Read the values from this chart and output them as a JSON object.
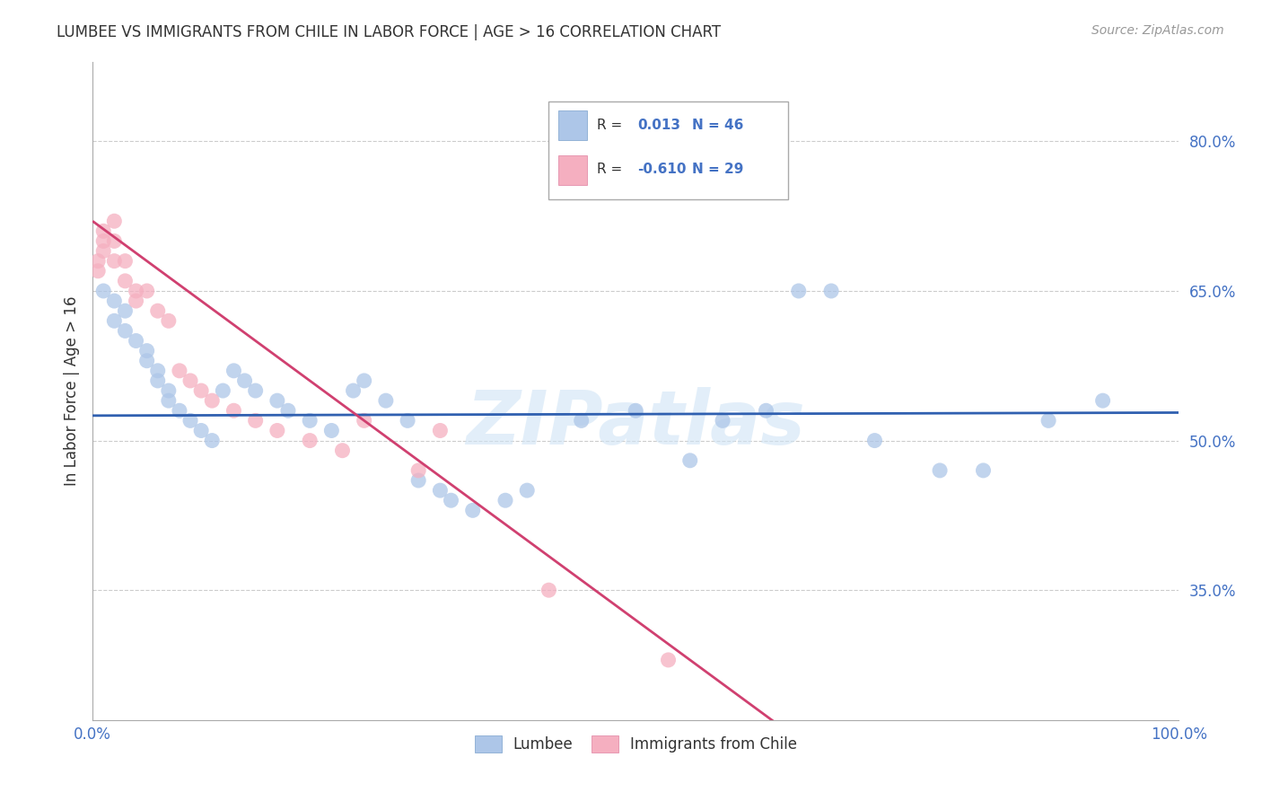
{
  "title": "LUMBEE VS IMMIGRANTS FROM CHILE IN LABOR FORCE | AGE > 16 CORRELATION CHART",
  "source": "Source: ZipAtlas.com",
  "ylabel": "In Labor Force | Age > 16",
  "y_ticks": [
    0.35,
    0.5,
    0.65,
    0.8
  ],
  "y_tick_labels": [
    "35.0%",
    "50.0%",
    "65.0%",
    "80.0%"
  ],
  "xlim": [
    0.0,
    1.0
  ],
  "ylim": [
    0.22,
    0.88
  ],
  "lumbee_R": "0.013",
  "lumbee_N": "46",
  "chile_R": "-0.610",
  "chile_N": "29",
  "lumbee_color": "#adc6e8",
  "chile_color": "#f5afc0",
  "lumbee_line_color": "#3060b0",
  "chile_line_color": "#d04070",
  "watermark": "ZIPatlas",
  "lumbee_x": [
    0.01,
    0.02,
    0.02,
    0.03,
    0.03,
    0.04,
    0.05,
    0.05,
    0.06,
    0.06,
    0.07,
    0.07,
    0.08,
    0.09,
    0.1,
    0.11,
    0.12,
    0.13,
    0.14,
    0.15,
    0.17,
    0.18,
    0.2,
    0.22,
    0.24,
    0.25,
    0.27,
    0.29,
    0.3,
    0.32,
    0.33,
    0.35,
    0.38,
    0.4,
    0.45,
    0.5,
    0.55,
    0.58,
    0.62,
    0.65,
    0.68,
    0.72,
    0.78,
    0.82,
    0.88,
    0.93
  ],
  "lumbee_y": [
    0.65,
    0.64,
    0.62,
    0.63,
    0.61,
    0.6,
    0.59,
    0.58,
    0.57,
    0.56,
    0.55,
    0.54,
    0.53,
    0.52,
    0.51,
    0.5,
    0.55,
    0.57,
    0.56,
    0.55,
    0.54,
    0.53,
    0.52,
    0.51,
    0.55,
    0.56,
    0.54,
    0.52,
    0.46,
    0.45,
    0.44,
    0.43,
    0.44,
    0.45,
    0.52,
    0.53,
    0.48,
    0.52,
    0.53,
    0.65,
    0.65,
    0.5,
    0.47,
    0.47,
    0.52,
    0.54
  ],
  "chile_x": [
    0.005,
    0.005,
    0.01,
    0.01,
    0.01,
    0.02,
    0.02,
    0.02,
    0.03,
    0.03,
    0.04,
    0.04,
    0.05,
    0.06,
    0.07,
    0.08,
    0.09,
    0.1,
    0.11,
    0.13,
    0.15,
    0.17,
    0.2,
    0.23,
    0.25,
    0.3,
    0.32,
    0.42,
    0.53
  ],
  "chile_y": [
    0.68,
    0.67,
    0.7,
    0.71,
    0.69,
    0.72,
    0.7,
    0.68,
    0.68,
    0.66,
    0.65,
    0.64,
    0.65,
    0.63,
    0.62,
    0.57,
    0.56,
    0.55,
    0.54,
    0.53,
    0.52,
    0.51,
    0.5,
    0.49,
    0.52,
    0.47,
    0.51,
    0.35,
    0.28
  ],
  "lumbee_line_y_intercept": 0.525,
  "lumbee_line_slope": 0.003,
  "chile_line_y_intercept": 0.72,
  "chile_line_slope": -0.8
}
